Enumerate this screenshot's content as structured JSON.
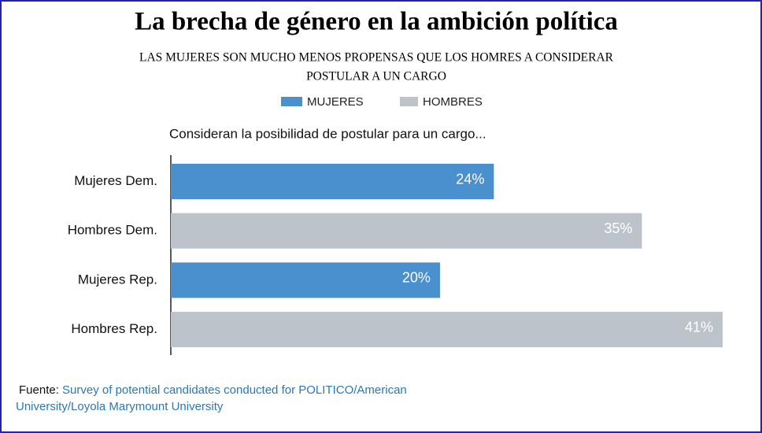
{
  "chart_data": {
    "type": "bar",
    "orientation": "horizontal",
    "title": "La brecha de género en la ambición política",
    "subtitle": [
      "LAS MUJERES SON MUCHO MENOS PROPENSAS  QUE LOS HOMRES A CONSIDERAR",
      "POSTULAR A UN CARGO"
    ],
    "annotation": "Consideran la posibilidad de postular para un cargo...",
    "categories": [
      "Mujeres Dem.",
      "Hombres Dem.",
      "Mujeres Rep.",
      "Hombres Rep."
    ],
    "series": [
      {
        "name": "MUJERES",
        "color": "#4a8fce",
        "values": [
          24,
          null,
          20,
          null
        ],
        "value_labels": [
          "24%",
          null,
          "20%",
          null
        ]
      },
      {
        "name": "HOMBRES",
        "color": "#bcc3ca",
        "values": [
          null,
          35,
          null,
          41
        ],
        "value_labels": [
          null,
          "35%",
          null,
          "41%"
        ]
      }
    ],
    "source_label": "Fuente:",
    "source": "Survey of potential candidates conducted for POLITICO/American University/Loyola Marymount University"
  }
}
